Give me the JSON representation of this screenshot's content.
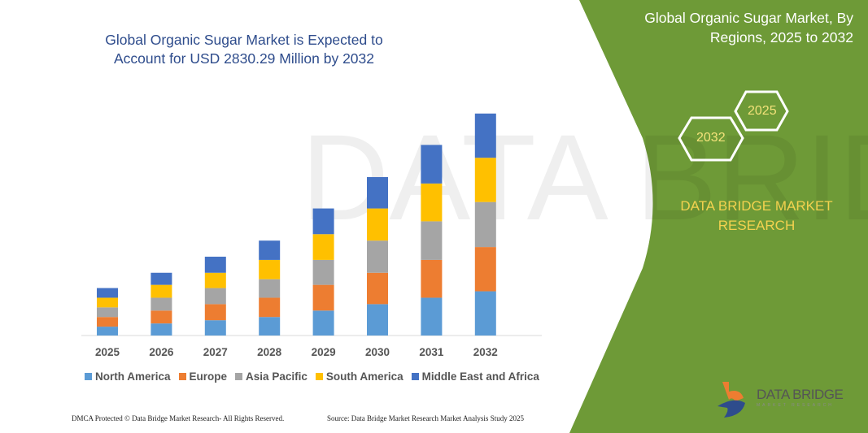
{
  "header": {
    "title": "Global Organic Sugar Market is Expected to Account for USD 2830.29 Million by 2032"
  },
  "side_panel": {
    "title": "Global Organic Sugar Market, By Regions, 2025 to 2032",
    "hex_start": "2025",
    "hex_end": "2032",
    "brand": "DATA BRIDGE MARKET RESEARCH",
    "logo_text": "DATA BRIDGE",
    "logo_sub": "MARKET RESEARCH",
    "panel_color": "#6e9a37"
  },
  "footer": {
    "left": "DMCA Protected © Data Bridge Market Research-  All Rights Reserved.",
    "right": "Source: Data Bridge Market Research  Market Analysis Study 2025"
  },
  "chart_data": {
    "type": "bar",
    "stacked": true,
    "title": "Global Organic Sugar Market is Expected to Account for USD 2830.29 Million by 2032",
    "categories": [
      "2025",
      "2026",
      "2027",
      "2028",
      "2029",
      "2030",
      "2031",
      "2032"
    ],
    "series": [
      {
        "name": "North America",
        "color": "#5b9bd5",
        "values": [
          113,
          154,
          195,
          236,
          318,
          400,
          482,
          564
        ]
      },
      {
        "name": "Europe",
        "color": "#ed7d31",
        "values": [
          123,
          164,
          205,
          246,
          328,
          400,
          482,
          564
        ]
      },
      {
        "name": "Asia Pacific",
        "color": "#a5a5a5",
        "values": [
          123,
          164,
          205,
          236,
          318,
          410,
          492,
          574
        ]
      },
      {
        "name": "South America",
        "color": "#ffc000",
        "values": [
          123,
          164,
          195,
          246,
          328,
          410,
          482,
          564
        ]
      },
      {
        "name": "Middle East and Africa",
        "color": "#4472c4",
        "values": [
          123,
          154,
          205,
          246,
          328,
          400,
          492,
          564
        ]
      }
    ],
    "ylim": [
      0,
      2900
    ],
    "grid": false,
    "legend": "bottom",
    "y_axis_shown": false
  }
}
